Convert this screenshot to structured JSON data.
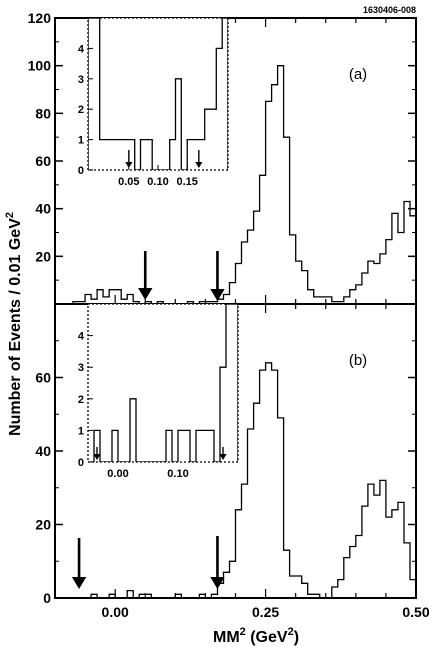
{
  "figure_id": "1630406-008",
  "colors": {
    "line": "#000000",
    "background": "#ffffff"
  },
  "chart_data": [
    {
      "type": "line",
      "title": "",
      "panel_label": "(a)",
      "xlabel": "MM",
      "xlabel_sup1": "2",
      "xlabel_unit_open": " (GeV",
      "xlabel_sup2": "2",
      "xlabel_unit_close": ")",
      "ylabel": "Number of Events / 0.01 GeV",
      "ylabel_sup": "2",
      "xlim": [
        -0.1,
        0.5
      ],
      "ylim": [
        0,
        120
      ],
      "yticks": [
        20,
        40,
        60,
        80,
        100,
        120
      ],
      "ytick_labels": [
        "20",
        "40",
        "60",
        "80",
        "100",
        "120"
      ],
      "grid": false,
      "series": [
        {
          "step": 0.01,
          "x": [
            -0.1,
            -0.09,
            -0.08,
            -0.07,
            -0.06,
            -0.05,
            -0.04,
            -0.03,
            -0.02,
            -0.01,
            0.0,
            0.01,
            0.02,
            0.03,
            0.04,
            0.05,
            0.06,
            0.07,
            0.08,
            0.09,
            0.1,
            0.11,
            0.12,
            0.13,
            0.14,
            0.15,
            0.16,
            0.17,
            0.18,
            0.19,
            0.2,
            0.21,
            0.22,
            0.23,
            0.24,
            0.25,
            0.26,
            0.27,
            0.28,
            0.29,
            0.3,
            0.31,
            0.32,
            0.33,
            0.34,
            0.35,
            0.36,
            0.37,
            0.38,
            0.39,
            0.4,
            0.41,
            0.42,
            0.43,
            0.44,
            0.45,
            0.46,
            0.47,
            0.48,
            0.49
          ],
          "y": [
            0,
            0,
            0,
            1,
            1,
            4,
            2,
            6,
            3,
            6,
            6,
            2,
            4,
            1,
            0,
            1,
            0,
            1,
            0,
            0,
            0,
            0,
            1,
            0,
            1,
            1,
            1,
            2,
            4,
            9,
            17,
            26,
            31,
            39,
            54,
            85,
            92,
            100,
            70,
            29,
            18,
            14,
            6,
            3,
            3,
            3,
            1,
            1,
            3,
            6,
            8,
            13,
            18,
            17,
            21,
            27,
            38,
            30,
            43,
            37
          ]
        }
      ],
      "arrows_x": [
        0.05,
        0.17
      ],
      "inset": {
        "xlim": [
          -0.02,
          0.22
        ],
        "ylim": [
          0,
          5
        ],
        "yticks": [
          0,
          1,
          2,
          3,
          4
        ],
        "ytick_labels": [
          "0",
          "1",
          "2",
          "3",
          "4"
        ],
        "xticks": [
          0.05,
          0.1,
          0.15
        ],
        "xtick_labels": [
          "0.05",
          "0.10",
          "0.15"
        ],
        "series": [
          {
            "x": [
              -0.02,
              -0.01,
              0.0,
              0.01,
              0.02,
              0.03,
              0.04,
              0.05,
              0.06,
              0.07,
              0.08,
              0.09,
              0.1,
              0.11,
              0.12,
              0.13,
              0.14,
              0.15,
              0.16,
              0.17,
              0.18,
              0.19,
              0.2,
              0.21
            ],
            "y": [
              5,
              5,
              1,
              1,
              1,
              1,
              1,
              1,
              0,
              1,
              1,
              0,
              0,
              0,
              1,
              3,
              0,
              1,
              1,
              1,
              2,
              2,
              4,
              5
            ]
          }
        ],
        "arrows_x": [
          0.05,
          0.17
        ]
      }
    },
    {
      "type": "line",
      "title": "",
      "panel_label": "(b)",
      "xlim": [
        -0.1,
        0.5
      ],
      "ylim": [
        0,
        80
      ],
      "yticks": [
        0,
        20,
        40,
        60
      ],
      "ytick_labels": [
        "0",
        "20",
        "40",
        "60"
      ],
      "xticks": [
        0.0,
        0.25,
        0.5
      ],
      "xtick_labels": [
        "0.00",
        "0.25",
        "0.50"
      ],
      "grid": false,
      "series": [
        {
          "step": 0.01,
          "x": [
            -0.1,
            -0.09,
            -0.08,
            -0.07,
            -0.06,
            -0.05,
            -0.04,
            -0.03,
            -0.02,
            -0.01,
            0.0,
            0.01,
            0.02,
            0.03,
            0.04,
            0.05,
            0.06,
            0.07,
            0.08,
            0.09,
            0.1,
            0.11,
            0.12,
            0.13,
            0.14,
            0.15,
            0.16,
            0.17,
            0.18,
            0.19,
            0.2,
            0.21,
            0.22,
            0.23,
            0.24,
            0.25,
            0.26,
            0.27,
            0.28,
            0.29,
            0.3,
            0.31,
            0.32,
            0.33,
            0.34,
            0.35,
            0.36,
            0.37,
            0.38,
            0.39,
            0.4,
            0.41,
            0.42,
            0.43,
            0.44,
            0.45,
            0.46,
            0.47,
            0.48,
            0.49
          ],
          "y": [
            0,
            0,
            0,
            0,
            0,
            0,
            1,
            0,
            0,
            1,
            0,
            0,
            2,
            0,
            1,
            1,
            0,
            0,
            0,
            0,
            1,
            0,
            0,
            0,
            1,
            0,
            1,
            4,
            7,
            10,
            24,
            31,
            46,
            53,
            62,
            64,
            62,
            49,
            13,
            6,
            6,
            4,
            1,
            1,
            0,
            0,
            3,
            5,
            11,
            14,
            17,
            25,
            31,
            28,
            32,
            22,
            24,
            26,
            15,
            5
          ]
        }
      ],
      "arrows_x": [
        -0.06,
        0.17
      ],
      "inset": {
        "xlim": [
          -0.05,
          0.2
        ],
        "ylim": [
          0,
          5
        ],
        "yticks": [
          0,
          1,
          2,
          3,
          4
        ],
        "ytick_labels": [
          "0",
          "1",
          "2",
          "3",
          "4"
        ],
        "xticks": [
          0.0,
          0.1
        ],
        "xtick_labels": [
          "0.00",
          "0.10"
        ],
        "series": [
          {
            "x": [
              -0.05,
              -0.04,
              -0.03,
              -0.02,
              -0.01,
              0.0,
              0.01,
              0.02,
              0.03,
              0.04,
              0.05,
              0.06,
              0.07,
              0.08,
              0.09,
              0.1,
              0.11,
              0.12,
              0.13,
              0.14,
              0.15,
              0.16,
              0.17,
              0.18,
              0.19
            ],
            "y": [
              0,
              1,
              0,
              0,
              1,
              0,
              0,
              2,
              0,
              0,
              0,
              0,
              0,
              1,
              0,
              1,
              1,
              0,
              1,
              1,
              1,
              0,
              3,
              5,
              5
            ]
          }
        ],
        "arrows_x": [
          -0.035,
          0.175
        ]
      }
    }
  ]
}
